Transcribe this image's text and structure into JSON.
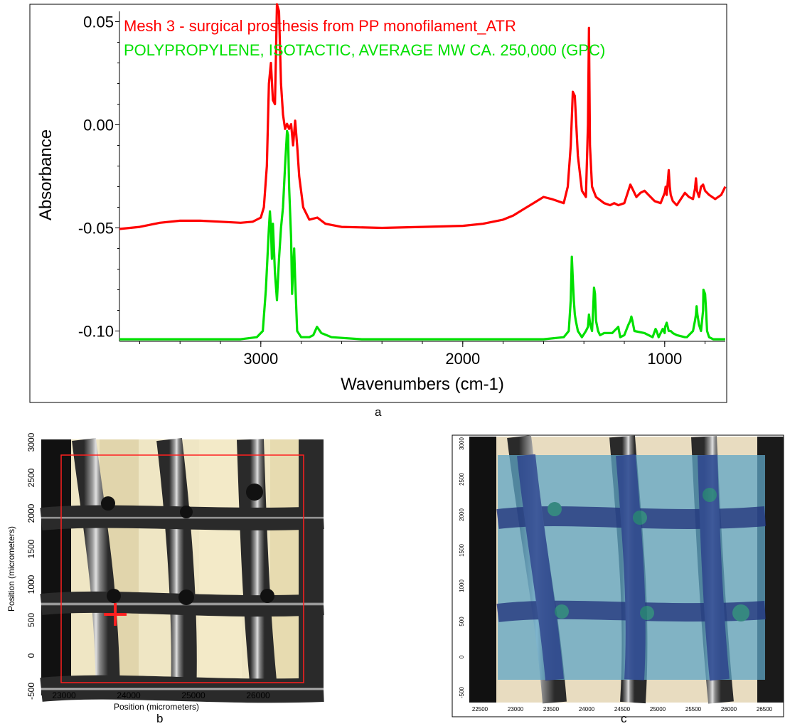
{
  "figure": {
    "panel_a": {
      "caption": "a",
      "legend": [
        {
          "text": "Mesh 3 - surgical prosthesis from PP monofilament_ATR",
          "color": "#ff0000"
        },
        {
          "text": "POLYPROPYLENE, ISOTACTIC, AVERAGE MW CA. 250,000 (GPC)",
          "color": "#00e000"
        }
      ]
    },
    "panel_b": {
      "caption": "b",
      "xlabel": "Position (micrometers)",
      "ylabel": "Position (micrometers)",
      "xticks": [
        "23000",
        "24000",
        "25000",
        "26000"
      ],
      "yticks": [
        "3000",
        "2500",
        "2000",
        "1500",
        "1000",
        "500",
        "0",
        "-500"
      ],
      "marker_color": "#ff2020"
    },
    "panel_c": {
      "caption": "c",
      "xticks": [
        "22500",
        "23000",
        "23500",
        "24000",
        "24500",
        "25000",
        "25500",
        "26000",
        "26500"
      ],
      "yticks": [
        "3000",
        "2500",
        "2000",
        "1500",
        "1000",
        "500",
        "0",
        "-500"
      ]
    }
  },
  "chart_data": {
    "type": "line",
    "xlabel": "Wavenumbers (cm-1)",
    "ylabel": "Absorbance",
    "xlim": [
      3700,
      700
    ],
    "ylim": [
      -0.105,
      0.055
    ],
    "xticks": [
      3000,
      2000,
      1000
    ],
    "yticks": [
      0.05,
      0.0,
      -0.05,
      -0.1
    ],
    "ytick_labels": [
      "0.05",
      "0.00",
      "-0.05",
      "-0.10"
    ],
    "series": [
      {
        "name": "Mesh 3 - surgical prosthesis from PP monofilament_ATR",
        "color": "#ff0000",
        "x": [
          3700,
          3600,
          3500,
          3400,
          3300,
          3200,
          3100,
          3040,
          3000,
          2985,
          2970,
          2960,
          2950,
          2940,
          2930,
          2920,
          2910,
          2900,
          2890,
          2880,
          2870,
          2860,
          2850,
          2840,
          2830,
          2820,
          2810,
          2790,
          2760,
          2720,
          2700,
          2680,
          2600,
          2400,
          2200,
          2000,
          1900,
          1800,
          1750,
          1700,
          1650,
          1600,
          1560,
          1500,
          1480,
          1465,
          1455,
          1445,
          1430,
          1410,
          1390,
          1380,
          1375,
          1370,
          1360,
          1340,
          1300,
          1270,
          1250,
          1230,
          1200,
          1180,
          1170,
          1160,
          1140,
          1120,
          1100,
          1080,
          1050,
          1020,
          1000,
          995,
          990,
          980,
          975,
          970,
          960,
          940,
          900,
          880,
          860,
          850,
          845,
          840,
          830,
          820,
          810,
          800,
          780,
          750,
          720,
          700
        ],
        "y": [
          -0.0505,
          -0.0495,
          -0.0475,
          -0.0465,
          -0.0465,
          -0.047,
          -0.0475,
          -0.047,
          -0.045,
          -0.04,
          -0.02,
          0.02,
          0.03,
          0.012,
          0.01,
          0.06,
          0.055,
          0.02,
          0.005,
          -0.002,
          0.0005,
          -0.002,
          0.0003,
          -0.01,
          0.002,
          -0.01,
          -0.025,
          -0.04,
          -0.046,
          -0.045,
          -0.0465,
          -0.048,
          -0.0495,
          -0.05,
          -0.0495,
          -0.049,
          -0.048,
          -0.046,
          -0.044,
          -0.041,
          -0.038,
          -0.035,
          -0.036,
          -0.038,
          -0.03,
          -0.01,
          0.016,
          0.014,
          -0.015,
          -0.032,
          -0.035,
          0.0,
          0.047,
          -0.01,
          -0.03,
          -0.035,
          -0.038,
          -0.039,
          -0.038,
          -0.039,
          -0.038,
          -0.032,
          -0.029,
          -0.031,
          -0.035,
          -0.033,
          -0.032,
          -0.034,
          -0.037,
          -0.038,
          -0.033,
          -0.03,
          -0.034,
          -0.022,
          -0.03,
          -0.034,
          -0.037,
          -0.039,
          -0.033,
          -0.035,
          -0.036,
          -0.031,
          -0.026,
          -0.032,
          -0.035,
          -0.03,
          -0.029,
          -0.032,
          -0.034,
          -0.036,
          -0.034,
          -0.03
        ]
      },
      {
        "name": "POLYPROPYLENE, ISOTACTIC, AVERAGE MW CA. 250,000 (GPC)",
        "color": "#00e000",
        "x": [
          3700,
          3500,
          3300,
          3100,
          3020,
          2990,
          2975,
          2960,
          2955,
          2950,
          2945,
          2940,
          2930,
          2920,
          2910,
          2900,
          2890,
          2880,
          2870,
          2865,
          2860,
          2850,
          2845,
          2840,
          2835,
          2830,
          2820,
          2800,
          2760,
          2740,
          2722,
          2700,
          2650,
          2500,
          2300,
          2000,
          1800,
          1600,
          1500,
          1475,
          1465,
          1460,
          1455,
          1450,
          1445,
          1440,
          1430,
          1410,
          1390,
          1380,
          1375,
          1370,
          1360,
          1355,
          1350,
          1345,
          1340,
          1330,
          1320,
          1300,
          1260,
          1230,
          1220,
          1200,
          1180,
          1170,
          1165,
          1160,
          1150,
          1100,
          1060,
          1045,
          1040,
          1030,
          1010,
          1000,
          998,
          990,
          980,
          970,
          960,
          940,
          900,
          890,
          880,
          860,
          850,
          845,
          842,
          838,
          830,
          820,
          810,
          808,
          800,
          795,
          790,
          780,
          760,
          730,
          700
        ],
        "y": [
          -0.104,
          -0.104,
          -0.104,
          -0.104,
          -0.103,
          -0.1,
          -0.08,
          -0.05,
          -0.042,
          -0.05,
          -0.065,
          -0.048,
          -0.072,
          -0.085,
          -0.065,
          -0.05,
          -0.04,
          -0.02,
          -0.003,
          -0.005,
          -0.03,
          -0.055,
          -0.082,
          -0.07,
          -0.06,
          -0.075,
          -0.1,
          -0.103,
          -0.103,
          -0.102,
          -0.098,
          -0.101,
          -0.103,
          -0.104,
          -0.104,
          -0.104,
          -0.104,
          -0.104,
          -0.103,
          -0.1,
          -0.085,
          -0.064,
          -0.075,
          -0.085,
          -0.092,
          -0.095,
          -0.1,
          -0.103,
          -0.1,
          -0.098,
          -0.092,
          -0.096,
          -0.1,
          -0.091,
          -0.079,
          -0.082,
          -0.095,
          -0.1,
          -0.102,
          -0.101,
          -0.101,
          -0.098,
          -0.103,
          -0.102,
          -0.097,
          -0.095,
          -0.093,
          -0.095,
          -0.1,
          -0.101,
          -0.103,
          -0.099,
          -0.1,
          -0.103,
          -0.099,
          -0.101,
          -0.098,
          -0.096,
          -0.1,
          -0.1,
          -0.101,
          -0.102,
          -0.103,
          -0.103,
          -0.102,
          -0.1,
          -0.095,
          -0.092,
          -0.088,
          -0.092,
          -0.097,
          -0.1,
          -0.09,
          -0.08,
          -0.082,
          -0.09,
          -0.1,
          -0.103,
          -0.104,
          -0.104,
          -0.104
        ]
      }
    ]
  }
}
